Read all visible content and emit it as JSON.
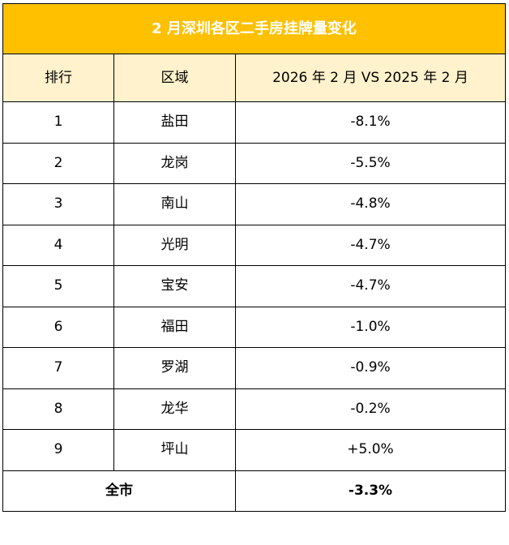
{
  "table": {
    "title": "2 月深圳各区二手房挂牌量变化",
    "headers": [
      "排行",
      "区域",
      "2026 年 2 月 VS 2025 年 2 月"
    ],
    "rows": [
      [
        "1",
        "盐田",
        "-8.1%"
      ],
      [
        "2",
        "龙岗",
        "-5.5%"
      ],
      [
        "3",
        "南山",
        "-4.8%"
      ],
      [
        "4",
        "光明",
        "-4.7%"
      ],
      [
        "5",
        "宝安",
        "-4.7%"
      ],
      [
        "6",
        "福田",
        "-1.0%"
      ],
      [
        "7",
        "罗湖",
        "-0.9%"
      ],
      [
        "8",
        "龙华",
        "-0.2%"
      ],
      [
        "9",
        "坪山",
        "+5.0%"
      ]
    ],
    "total": {
      "label": "全市",
      "value": "-3.3%"
    }
  },
  "colors": {
    "title_background": "#FFC000",
    "title_text": "#FFFFFF",
    "header_background": "#FFF2CC",
    "border": "#000000"
  }
}
